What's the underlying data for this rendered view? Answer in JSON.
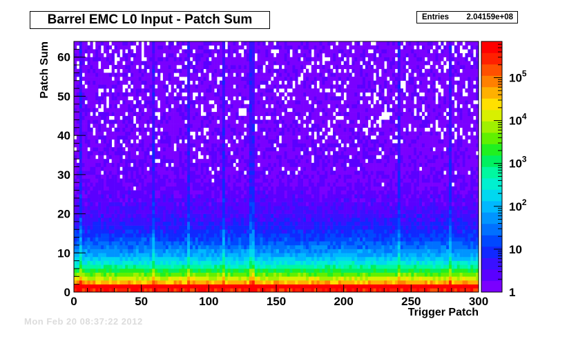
{
  "chart_data": {
    "type": "heatmap",
    "title": "Barrel EMC L0 Input - Patch Sum",
    "xlabel": "Trigger Patch",
    "ylabel": "Patch Sum",
    "xlim": [
      0,
      300
    ],
    "ylim": [
      0,
      64
    ],
    "x_ticks": [
      0,
      50,
      100,
      150,
      200,
      250,
      300
    ],
    "y_ticks": [
      0,
      10,
      20,
      30,
      40,
      50,
      60
    ],
    "z_scale": "log",
    "zlim": [
      1,
      700000
    ],
    "z_tick_labels": [
      {
        "value": 1,
        "base": "1",
        "exp": ""
      },
      {
        "value": 10,
        "base": "10",
        "exp": ""
      },
      {
        "value": 100,
        "base": "10",
        "exp": "2"
      },
      {
        "value": 1000,
        "base": "10",
        "exp": "3"
      },
      {
        "value": 10000,
        "base": "10",
        "exp": "4"
      },
      {
        "value": 100000,
        "base": "10",
        "exp": "5"
      }
    ],
    "palette": [
      "#7a00ff",
      "#5a00ff",
      "#3a10ff",
      "#1028ff",
      "#0048ff",
      "#0070ff",
      "#0094ff",
      "#00b8ff",
      "#00d8f0",
      "#00f0d0",
      "#00f8a0",
      "#00f060",
      "#20f020",
      "#60f000",
      "#a0f000",
      "#d8f000",
      "#ffe000",
      "#ffb000",
      "#ff8000",
      "#ff5000",
      "#ff2000",
      "#ff0000"
    ],
    "stats": {
      "label": "Entries",
      "value": "2.04159e+08"
    }
  },
  "footer": "Mon Feb 20 08:37:22 2012"
}
